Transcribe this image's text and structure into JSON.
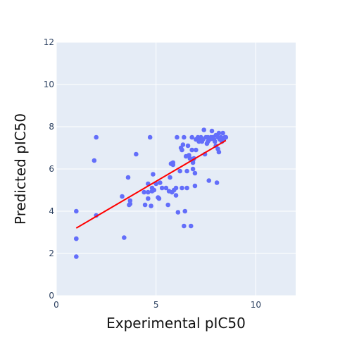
{
  "chart_data": {
    "type": "scatter",
    "title": "",
    "xlabel": "Experimental pIC50",
    "ylabel": "Predicted pIC50",
    "xlim": [
      0,
      12
    ],
    "ylim": [
      0,
      12
    ],
    "x_ticks": [
      "0",
      "5",
      "10"
    ],
    "y_ticks": [
      "0",
      "2",
      "4",
      "6",
      "8",
      "10",
      "12"
    ],
    "grid": true,
    "legend": "none",
    "colors": {
      "plot_background": "#e5ecf6",
      "grid": "#ffffff",
      "points": "#636efa",
      "fit_line": "#ff0000"
    },
    "series": [
      {
        "kind": "points",
        "points": [
          [
            1.0,
            4.0
          ],
          [
            1.0,
            2.7
          ],
          [
            1.0,
            2.7
          ],
          [
            1.0,
            1.85
          ],
          [
            1.9,
            6.4
          ],
          [
            2.0,
            7.5
          ],
          [
            2.0,
            3.8
          ],
          [
            3.3,
            4.7
          ],
          [
            3.4,
            2.75
          ],
          [
            3.6,
            5.6
          ],
          [
            3.65,
            4.3
          ],
          [
            3.7,
            4.5
          ],
          [
            3.7,
            4.35
          ],
          [
            4.0,
            6.7
          ],
          [
            4.4,
            4.9
          ],
          [
            4.45,
            4.3
          ],
          [
            4.6,
            4.9
          ],
          [
            4.6,
            4.6
          ],
          [
            4.6,
            5.3
          ],
          [
            4.7,
            7.5
          ],
          [
            4.75,
            4.25
          ],
          [
            4.8,
            5.1
          ],
          [
            4.8,
            4.95
          ],
          [
            4.85,
            5.75
          ],
          [
            4.9,
            5.0
          ],
          [
            5.0,
            5.3
          ],
          [
            5.1,
            4.65
          ],
          [
            5.15,
            4.6
          ],
          [
            5.2,
            5.35
          ],
          [
            5.3,
            5.1
          ],
          [
            5.5,
            5.1
          ],
          [
            5.6,
            4.3
          ],
          [
            5.65,
            4.95
          ],
          [
            5.7,
            5.6
          ],
          [
            5.75,
            6.25
          ],
          [
            5.8,
            4.9
          ],
          [
            5.85,
            6.2
          ],
          [
            5.85,
            6.3
          ],
          [
            5.9,
            5.0
          ],
          [
            6.0,
            5.1
          ],
          [
            6.0,
            4.75
          ],
          [
            6.05,
            7.5
          ],
          [
            6.1,
            3.95
          ],
          [
            6.2,
            5.9
          ],
          [
            6.25,
            7.0
          ],
          [
            6.3,
            5.1
          ],
          [
            6.3,
            6.9
          ],
          [
            6.35,
            7.15
          ],
          [
            6.4,
            7.5
          ],
          [
            6.4,
            3.3
          ],
          [
            6.45,
            4.0
          ],
          [
            6.5,
            6.6
          ],
          [
            6.55,
            5.1
          ],
          [
            6.55,
            5.9
          ],
          [
            6.6,
            7.1
          ],
          [
            6.65,
            6.65
          ],
          [
            6.7,
            6.5
          ],
          [
            6.75,
            3.3
          ],
          [
            6.8,
            7.5
          ],
          [
            6.8,
            6.9
          ],
          [
            6.85,
            6.4
          ],
          [
            6.85,
            6.3
          ],
          [
            6.85,
            6.0
          ],
          [
            6.9,
            6.5
          ],
          [
            6.95,
            5.8
          ],
          [
            6.95,
            5.2
          ],
          [
            7.0,
            6.9
          ],
          [
            7.0,
            7.4
          ],
          [
            7.1,
            7.5
          ],
          [
            7.15,
            7.3
          ],
          [
            7.2,
            7.4
          ],
          [
            7.25,
            7.5
          ],
          [
            7.3,
            7.3
          ],
          [
            7.35,
            7.4
          ],
          [
            7.4,
            7.85
          ],
          [
            7.45,
            6.7
          ],
          [
            7.5,
            7.5
          ],
          [
            7.55,
            7.2
          ],
          [
            7.6,
            7.3
          ],
          [
            7.6,
            7.5
          ],
          [
            7.65,
            5.45
          ],
          [
            7.7,
            7.4
          ],
          [
            7.75,
            7.5
          ],
          [
            7.8,
            7.8
          ],
          [
            7.85,
            7.5
          ],
          [
            7.9,
            7.4
          ],
          [
            7.95,
            7.3
          ],
          [
            8.0,
            7.1
          ],
          [
            8.0,
            7.6
          ],
          [
            8.05,
            5.35
          ],
          [
            8.1,
            6.95
          ],
          [
            8.1,
            7.5
          ],
          [
            8.15,
            7.7
          ],
          [
            8.15,
            6.8
          ],
          [
            8.2,
            7.4
          ],
          [
            8.25,
            7.5
          ],
          [
            8.3,
            7.3
          ],
          [
            8.35,
            7.7
          ],
          [
            8.4,
            7.4
          ],
          [
            8.45,
            7.5
          ],
          [
            8.5,
            7.5
          ]
        ]
      },
      {
        "kind": "fit_line",
        "points": [
          [
            1.0,
            3.2
          ],
          [
            8.5,
            7.35
          ]
        ]
      }
    ]
  }
}
